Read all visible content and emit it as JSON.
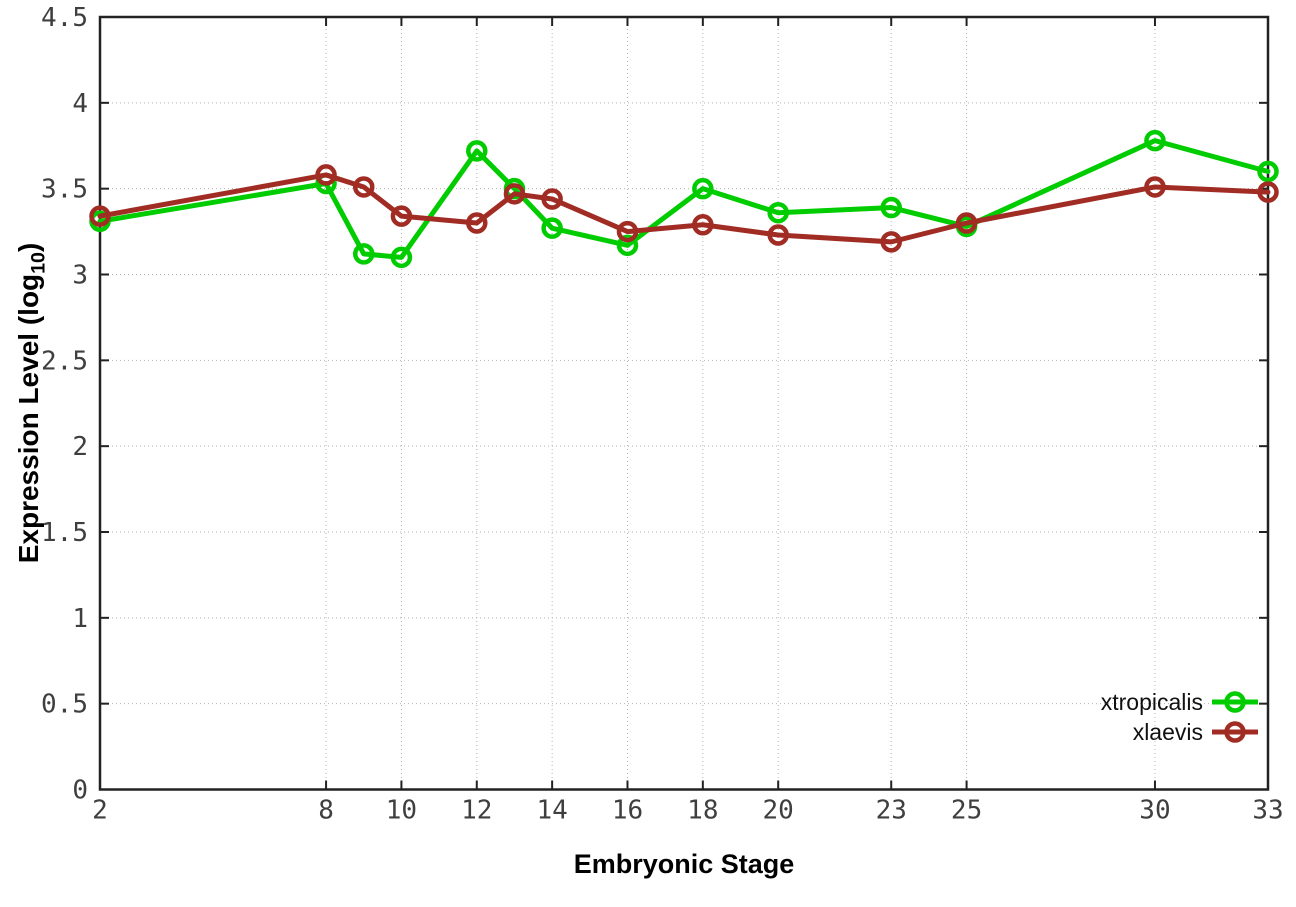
{
  "chart_data": {
    "type": "line",
    "title": "",
    "xlabel": "Embryonic Stage",
    "ylabel_main": "Expression Level (log",
    "ylabel_sub": "10",
    "ylabel_close": ")",
    "xlim": [
      2,
      33
    ],
    "ylim": [
      0,
      4.5
    ],
    "grid": true,
    "legend_position": "inside bottom-right",
    "x_ticks": [
      2,
      8,
      10,
      12,
      14,
      16,
      18,
      20,
      23,
      25,
      30,
      33
    ],
    "y_ticks": [
      0,
      0.5,
      1,
      1.5,
      2,
      2.5,
      3,
      3.5,
      4,
      4.5
    ],
    "y_tick_labels": [
      "0",
      "0.5",
      "1",
      "1.5",
      "2",
      "2.5",
      "3",
      "3.5",
      "4",
      "4.5"
    ],
    "x": [
      2,
      8,
      9,
      10,
      12,
      13,
      14,
      16,
      18,
      20,
      23,
      25,
      30,
      33
    ],
    "series": [
      {
        "name": "xtropicalis",
        "color": "#00cc00",
        "marker": "open-circle",
        "values": [
          3.31,
          3.53,
          3.12,
          3.1,
          3.72,
          3.5,
          3.27,
          3.17,
          3.5,
          3.36,
          3.39,
          3.28,
          3.78,
          3.6
        ]
      },
      {
        "name": "xlaevis",
        "color": "#a02c24",
        "marker": "open-circle",
        "values": [
          3.34,
          3.58,
          3.51,
          3.34,
          3.3,
          3.47,
          3.44,
          3.25,
          3.29,
          3.23,
          3.19,
          3.3,
          3.51,
          3.48
        ]
      }
    ],
    "colors": {
      "grid": "#b4b4b4",
      "border": "#222222",
      "tick_text": "#3f3f3f",
      "axis_title": "#000000",
      "background": "#ffffff"
    }
  }
}
